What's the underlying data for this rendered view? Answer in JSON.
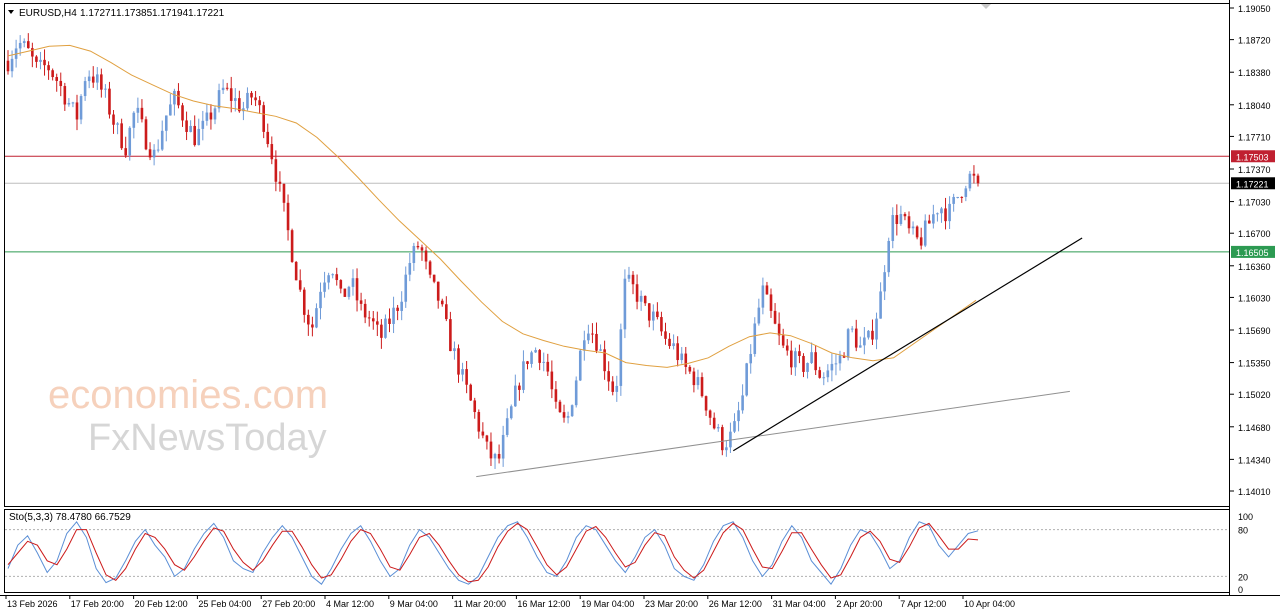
{
  "header": {
    "symbol": "EURUSD,H4",
    "open": "1.17271",
    "high": "1.17385",
    "low": "1.17194",
    "close": "1.17221"
  },
  "watermark": {
    "line1": "economies.com",
    "line2": "FxNewsToday"
  },
  "colors": {
    "bull": "#6f9bd8",
    "bear": "#cc1b1b",
    "ma": "#e0a040",
    "resistance": "#c02030",
    "support": "#2c9a52",
    "current": "#000000",
    "stoch_main": "#5b8fd6",
    "stoch_signal": "#cc1b1b"
  },
  "chart_data": [
    {
      "type": "candlestick",
      "symbol": "EURUSD",
      "timeframe": "H4",
      "ylim": [
        1.1401,
        1.1905
      ],
      "y_ticks": [
        "1.19050",
        "1.18720",
        "1.18380",
        "1.18040",
        "1.17710",
        "1.17370",
        "1.17030",
        "1.16700",
        "1.16360",
        "1.16030",
        "1.15690",
        "1.15350",
        "1.15020",
        "1.14680",
        "1.14340",
        "1.14010"
      ],
      "x_ticks": [
        "13 Feb 2026",
        "17 Feb 20:00",
        "20 Feb 12:00",
        "25 Feb 04:00",
        "27 Feb 20:00",
        "4 Mar 12:00",
        "9 Mar 04:00",
        "11 Mar 20:00",
        "16 Mar 12:00",
        "19 Mar 04:00",
        "23 Mar 20:00",
        "26 Mar 12:00",
        "31 Mar 04:00",
        "2 Apr 20:00",
        "7 Apr 12:00",
        "10 Apr 04:00"
      ],
      "horizontal_levels": [
        {
          "label": "1.17503",
          "value": 1.17503,
          "role": "resistance"
        },
        {
          "label": "1.17221",
          "value": 1.17221,
          "role": "current"
        },
        {
          "label": "1.16505",
          "value": 1.16505,
          "role": "support"
        }
      ],
      "trendlines": [
        {
          "from": {
            "bar": 0.385,
            "price": 1.1416
          },
          "to": {
            "bar": 0.87,
            "price": 1.1505
          },
          "style": "grey"
        },
        {
          "from": {
            "bar": 0.595,
            "price": 1.1443
          },
          "to": {
            "bar": 0.88,
            "price": 1.1665
          },
          "style": "black"
        }
      ],
      "price_path": [
        1.185,
        1.187,
        1.186,
        1.184,
        1.1845,
        1.183,
        1.181,
        1.179,
        1.184,
        1.183,
        1.181,
        1.178,
        1.176,
        1.18,
        1.177,
        1.175,
        1.179,
        1.181,
        1.179,
        1.177,
        1.178,
        1.18,
        1.182,
        1.181,
        1.18,
        1.1815,
        1.179,
        1.175,
        1.17,
        1.165,
        1.16,
        1.157,
        1.162,
        1.164,
        1.16,
        1.162,
        1.159,
        1.158,
        1.156,
        1.158,
        1.16,
        1.164,
        1.166,
        1.162,
        1.16,
        1.156,
        1.153,
        1.15,
        1.147,
        1.144,
        1.143,
        1.147,
        1.151,
        1.154,
        1.155,
        1.153,
        1.148,
        1.147,
        1.152,
        1.158,
        1.156,
        1.153,
        1.15,
        1.162,
        1.161,
        1.159,
        1.158,
        1.156,
        1.155,
        1.153,
        1.152,
        1.15,
        1.147,
        1.145,
        1.146,
        1.15,
        1.156,
        1.161,
        1.158,
        1.155,
        1.154,
        1.153,
        1.154,
        1.152,
        1.153,
        1.154,
        1.157,
        1.155,
        1.156,
        1.16,
        1.168,
        1.169,
        1.167,
        1.166,
        1.168,
        1.17,
        1.169,
        1.171,
        1.173,
        1.1722
      ],
      "ma_path": [
        1.1855,
        1.186,
        1.1865,
        1.1866,
        1.186,
        1.1848,
        1.1835,
        1.1825,
        1.1815,
        1.1808,
        1.1803,
        1.18,
        1.1796,
        1.1792,
        1.1785,
        1.177,
        1.175,
        1.1728,
        1.1705,
        1.1683,
        1.1663,
        1.1643,
        1.162,
        1.1598,
        1.1578,
        1.1565,
        1.1558,
        1.1552,
        1.1548,
        1.1545,
        1.1535,
        1.1532,
        1.153,
        1.1534,
        1.154,
        1.1552,
        1.1562,
        1.1566,
        1.1563,
        1.1555,
        1.1545,
        1.154,
        1.1537,
        1.154,
        1.1555,
        1.157,
        1.1585,
        1.16
      ],
      "series": [
        {
          "name": "EURUSD",
          "values": "candles"
        },
        {
          "name": "MA",
          "values": "ma_path"
        }
      ]
    },
    {
      "type": "line",
      "title": "Sto(5,3,3) 78.4780 66.7529",
      "ylim": [
        0,
        100
      ],
      "y_ticks": [
        "100",
        "80",
        "20",
        "0"
      ],
      "levels": [
        80,
        20
      ],
      "main_last": 78.478,
      "signal_last": 66.7529,
      "series": [
        {
          "name": "Sto main",
          "values": [
            30,
            60,
            72,
            50,
            25,
            40,
            75,
            90,
            70,
            30,
            12,
            18,
            40,
            65,
            80,
            60,
            45,
            20,
            30,
            55,
            75,
            88,
            70,
            40,
            30,
            25,
            50,
            70,
            85,
            70,
            45,
            20,
            10,
            30,
            55,
            75,
            85,
            65,
            40,
            20,
            30,
            60,
            80,
            70,
            50,
            30,
            15,
            10,
            20,
            45,
            70,
            85,
            90,
            70,
            45,
            25,
            20,
            40,
            70,
            85,
            80,
            60,
            40,
            25,
            45,
            70,
            80,
            60,
            30,
            20,
            15,
            35,
            65,
            85,
            90,
            70,
            40,
            20,
            35,
            65,
            85,
            70,
            40,
            25,
            10,
            30,
            60,
            80,
            75,
            55,
            30,
            40,
            70,
            90,
            85,
            60,
            45,
            60,
            75,
            78.478
          ]
        },
        {
          "name": "Sto signal",
          "values": [
            35,
            50,
            65,
            60,
            40,
            35,
            55,
            80,
            80,
            50,
            22,
            15,
            30,
            55,
            75,
            70,
            55,
            35,
            28,
            45,
            65,
            82,
            78,
            55,
            38,
            28,
            40,
            60,
            78,
            78,
            58,
            35,
            18,
            22,
            42,
            65,
            80,
            75,
            55,
            32,
            28,
            48,
            70,
            75,
            60,
            40,
            22,
            13,
            15,
            32,
            58,
            78,
            88,
            80,
            58,
            35,
            22,
            32,
            55,
            78,
            84,
            70,
            50,
            32,
            38,
            60,
            76,
            72,
            45,
            28,
            18,
            28,
            52,
            76,
            88,
            80,
            55,
            32,
            30,
            52,
            76,
            76,
            55,
            35,
            18,
            22,
            45,
            70,
            78,
            65,
            42,
            38,
            58,
            82,
            88,
            72,
            55,
            55,
            68,
            66.7529
          ]
        }
      ]
    }
  ]
}
